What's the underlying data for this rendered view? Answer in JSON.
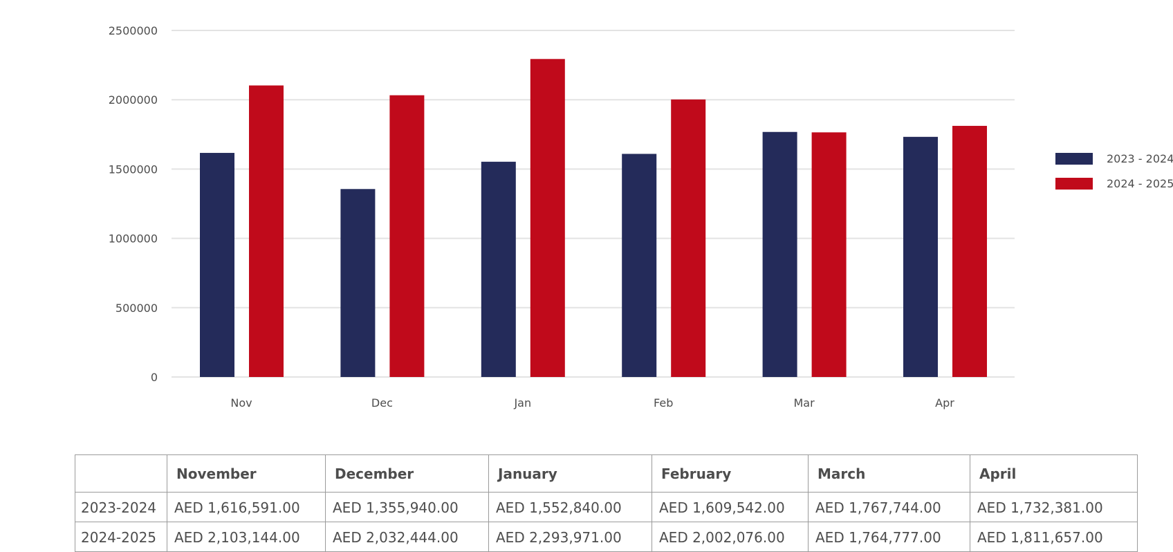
{
  "colors": {
    "series1": "#242b5a",
    "series2": "#c00a1b",
    "grid": "#e3e3e3",
    "text": "#4d4d4d"
  },
  "chart_data": {
    "type": "bar",
    "categories": [
      "Nov",
      "Dec",
      "Jan",
      "Feb",
      "Mar",
      "Apr"
    ],
    "series": [
      {
        "name": "2023 - 2024",
        "values": [
          1616591,
          1355940,
          1552840,
          1609542,
          1767744,
          1732381
        ]
      },
      {
        "name": "2024 - 2025",
        "values": [
          2103144,
          2032444,
          2293971,
          2002076,
          1764777,
          1811657
        ]
      }
    ],
    "yticks": [
      "0",
      "500000",
      "1000000",
      "1500000",
      "2000000",
      "2500000"
    ],
    "ylim": [
      0,
      2500000
    ],
    "grid": true,
    "legend": "right"
  },
  "table": {
    "headers": [
      "",
      "November",
      "December",
      "January",
      "February",
      "March",
      "April"
    ],
    "rows": [
      {
        "label": "2023-2024",
        "cells": [
          "AED 1,616,591.00",
          "AED 1,355,940.00",
          "AED 1,552,840.00",
          "AED 1,609,542.00",
          "AED 1,767,744.00",
          "AED 1,732,381.00"
        ]
      },
      {
        "label": "2024-2025",
        "cells": [
          "AED 2,103,144.00",
          "AED 2,032,444.00",
          "AED 2,293,971.00",
          "AED 2,002,076.00",
          "AED 1,764,777.00",
          "AED 1,811,657.00"
        ]
      }
    ]
  }
}
